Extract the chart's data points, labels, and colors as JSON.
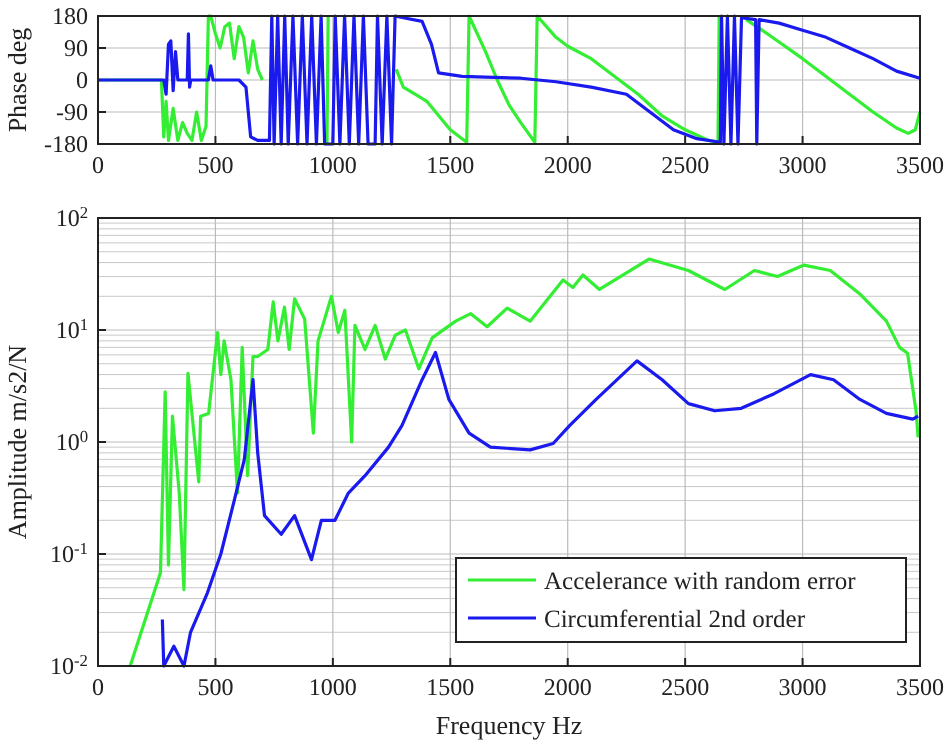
{
  "chart_data": [
    {
      "type": "line",
      "ylabel": "Phase deg",
      "xlim": [
        0,
        3500
      ],
      "xticks": [
        0,
        500,
        1000,
        1500,
        2000,
        2500,
        3000,
        3500
      ],
      "ylim": [
        -180,
        180
      ],
      "yticks": [
        -180,
        -90,
        0,
        90,
        180
      ],
      "grid": true,
      "legend": false,
      "series": [
        {
          "color": "#33ee33",
          "x": [
            0,
            270,
            280,
            290,
            300,
            320,
            340,
            360,
            380,
            400,
            420,
            440,
            460,
            470,
            480,
            500,
            520,
            540,
            560,
            580,
            600,
            620,
            640,
            660,
            680,
            700,
            720,
            975,
            980,
            985,
            1270,
            1300,
            1350,
            1400,
            1450,
            1500,
            1570,
            1580,
            1650,
            1700,
            1750,
            1800,
            1860,
            1870,
            1950,
            2000,
            2100,
            2200,
            2300,
            2400,
            2500,
            2600,
            2640,
            2645,
            2700,
            2760,
            2850,
            3000,
            3100,
            3200,
            3300,
            3400,
            3450,
            3480,
            3500
          ],
          "values": [
            0,
            0,
            -160,
            -60,
            -170,
            -80,
            -170,
            -120,
            -150,
            -170,
            -90,
            -170,
            -130,
            180,
            180,
            130,
            90,
            150,
            160,
            60,
            150,
            120,
            20,
            110,
            30,
            0,
            null,
            -180,
            180,
            null,
            30,
            -20,
            -40,
            -60,
            -100,
            -140,
            -175,
            180,
            80,
            0,
            -70,
            -120,
            -175,
            180,
            120,
            95,
            60,
            10,
            -40,
            -100,
            -140,
            -170,
            -175,
            180,
            null,
            170,
            130,
            60,
            10,
            -40,
            -90,
            -135,
            -150,
            -140,
            -90
          ]
        },
        {
          "color": "#1a1aee",
          "x": [
            0,
            280,
            290,
            300,
            310,
            320,
            330,
            340,
            380,
            385,
            390,
            395,
            400,
            470,
            480,
            490,
            600,
            630,
            650,
            680,
            730,
            740,
            750,
            765,
            780,
            795,
            810,
            830,
            850,
            870,
            890,
            910,
            930,
            950,
            965,
            1000,
            1010,
            1030,
            1050,
            1070,
            1090,
            1110,
            1130,
            1150,
            1180,
            1190,
            1210,
            1230,
            1250,
            1265,
            1300,
            1380,
            1420,
            1450,
            1550,
            1800,
            1950,
            2100,
            2250,
            2350,
            2450,
            2550,
            2650,
            2655,
            2665,
            2680,
            2695,
            2710,
            2725,
            2740,
            2800,
            2805,
            2815,
            2900,
            3000,
            3100,
            3200,
            3300,
            3400,
            3500
          ],
          "values": [
            0,
            0,
            -40,
            100,
            110,
            -30,
            80,
            0,
            0,
            130,
            -20,
            0,
            0,
            0,
            40,
            0,
            0,
            -20,
            -160,
            -170,
            -170,
            180,
            -180,
            180,
            -180,
            180,
            -180,
            180,
            -180,
            180,
            -180,
            180,
            -180,
            180,
            -180,
            -180,
            180,
            -180,
            180,
            -180,
            180,
            -180,
            180,
            -180,
            -180,
            180,
            -180,
            180,
            -180,
            180,
            175,
            165,
            100,
            20,
            10,
            5,
            -5,
            -20,
            -40,
            -90,
            -140,
            -165,
            -175,
            180,
            -180,
            180,
            -180,
            180,
            -180,
            175,
            170,
            -180,
            170,
            160,
            140,
            120,
            90,
            60,
            25,
            5
          ]
        }
      ]
    },
    {
      "type": "line",
      "xlabel": "Frequency Hz",
      "ylabel": "Amplitude m/s2/N",
      "log": "y",
      "xlim": [
        0,
        3500
      ],
      "xticks": [
        0,
        500,
        1000,
        1500,
        2000,
        2500,
        3000,
        3500
      ],
      "ylim": [
        0.01,
        100
      ],
      "yticks": [
        {
          "value": 0.01,
          "label": "10$^{-2}$"
        },
        {
          "value": 0.1,
          "label": "10$^{-1}$"
        },
        {
          "value": 1,
          "label": "10$^{0}$"
        },
        {
          "value": 10,
          "label": "10$^{1}$"
        },
        {
          "value": 100,
          "label": "10$^{2}$"
        }
      ],
      "grid": true,
      "legend": "bottom right",
      "series": [
        {
          "name": "Accelerance with random error",
          "color": "#33ee33",
          "x": [
            137,
            266,
            286,
            300,
            317,
            346,
            366,
            383,
            429,
            437,
            471,
            509,
            523,
            537,
            566,
            594,
            614,
            637,
            660,
            680,
            723,
            746,
            766,
            794,
            814,
            837,
            880,
            917,
            937,
            994,
            1023,
            1051,
            1075,
            1080,
            1094,
            1137,
            1180,
            1223,
            1266,
            1309,
            1366,
            1423,
            1523,
            1587,
            1657,
            1742,
            1840,
            1980,
            2022,
            2065,
            2135,
            2346,
            2514,
            2669,
            2795,
            2893,
            3006,
            3118,
            3244,
            3357,
            3413,
            3447,
            3483,
            3492
          ],
          "values": [
            0.01,
            0.068,
            2.8,
            0.08,
            1.7,
            0.35,
            0.048,
            4.1,
            0.44,
            1.7,
            1.8,
            9.5,
            4,
            8,
            3.6,
            0.35,
            7,
            0.5,
            5.8,
            5.8,
            6.7,
            17.8,
            8,
            16,
            6.7,
            19,
            12.5,
            1.2,
            8,
            20,
            9.5,
            15,
            1.6,
            1,
            11,
            6.7,
            11,
            5.5,
            9,
            10,
            4.5,
            8.5,
            12,
            14,
            10.7,
            15.7,
            12,
            28,
            24,
            31,
            23,
            43,
            34,
            23,
            34,
            30,
            38,
            34,
            21,
            12,
            7,
            6.2,
            1.9,
            1.1
          ]
        },
        {
          "name": "Circumferential 2nd order",
          "color": "#1a1aee",
          "x": [
            274,
            280,
            323,
            366,
            394,
            466,
            523,
            580,
            623,
            660,
            680,
            709,
            780,
            837,
            909,
            951,
            1009,
            1066,
            1137,
            1237,
            1294,
            1380,
            1437,
            1494,
            1580,
            1671,
            1840,
            1938,
            2008,
            2121,
            2295,
            2402,
            2514,
            2626,
            2739,
            2879,
            3034,
            3132,
            3244,
            3357,
            3469,
            3492
          ],
          "values": [
            0.026,
            0.01,
            0.015,
            0.01,
            0.02,
            0.045,
            0.1,
            0.3,
            0.7,
            3.6,
            0.8,
            0.22,
            0.15,
            0.22,
            0.089,
            0.2,
            0.2,
            0.35,
            0.5,
            0.9,
            1.4,
            3.6,
            6.3,
            2.4,
            1.2,
            0.9,
            0.85,
            0.97,
            1.4,
            2.4,
            5.3,
            3.6,
            2.2,
            1.9,
            2.0,
            2.7,
            4.0,
            3.6,
            2.4,
            1.8,
            1.6,
            1.7
          ]
        }
      ]
    }
  ]
}
